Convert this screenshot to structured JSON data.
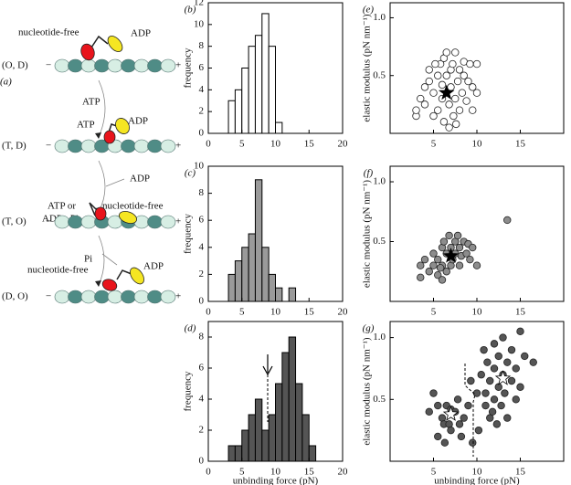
{
  "diagram": {
    "label": "(a)",
    "states": [
      "(O, D)",
      "(T, D)",
      "(T, O)",
      "(D, O)"
    ],
    "minus": "−",
    "plus": "+",
    "head_labels": [
      [
        "nucleotide-free",
        "ADP"
      ],
      [
        "ATP",
        "ADP"
      ],
      [
        "ATP or",
        "ADP · Pi",
        "nucleotide-free"
      ],
      [
        "nucleotide-free",
        "ADP"
      ]
    ],
    "steps": [
      "ATP",
      "ADP",
      "Pi"
    ]
  },
  "chart_data": [
    {
      "type": "histogram",
      "panel": "(b)",
      "ylabel": "frequency",
      "color": "#ffffff",
      "bins": [
        3,
        4,
        5,
        6,
        7,
        8,
        9,
        10,
        11
      ],
      "values": [
        3,
        4,
        6,
        8,
        9,
        11,
        8,
        1
      ],
      "xlim": [
        0,
        20
      ],
      "xticks": [
        0,
        5,
        10,
        15,
        20
      ],
      "ylim": [
        0,
        12
      ],
      "yticks": [
        0,
        2,
        4,
        6,
        8,
        10,
        12
      ]
    },
    {
      "type": "histogram",
      "panel": "(c)",
      "ylabel": "frequency",
      "color": "#9a9a9a",
      "bins": [
        3,
        4,
        5,
        6,
        7,
        8,
        9,
        10,
        11,
        12,
        13
      ],
      "values": [
        2,
        3,
        4,
        5,
        9,
        4,
        2,
        1,
        0,
        1
      ],
      "xlim": [
        0,
        20
      ],
      "xticks": [
        0,
        5,
        10,
        15,
        20
      ],
      "ylim": [
        0,
        10
      ],
      "yticks": [
        0,
        2,
        4,
        6,
        8,
        10
      ]
    },
    {
      "type": "histogram",
      "panel": "(d)",
      "ylabel": "frequency",
      "xlabel": "unbinding force (pN)",
      "color": "#555555",
      "bins": [
        3,
        4,
        5,
        6,
        7,
        8,
        9,
        10,
        11,
        12,
        13,
        14,
        15,
        16
      ],
      "values": [
        1,
        1,
        2,
        3,
        4,
        2,
        3,
        5,
        7,
        8,
        5,
        3,
        1
      ],
      "xlim": [
        0,
        20
      ],
      "xticks": [
        0,
        5,
        10,
        15,
        20
      ],
      "ylim": [
        0,
        9
      ],
      "yticks": [
        0,
        2,
        4,
        6,
        8
      ]
    },
    {
      "type": "scatter",
      "panel": "(e)",
      "ylabel": "elastic modulus (pN nm⁻¹)",
      "color": "#ffffff",
      "x": [
        3,
        3,
        3.5,
        4,
        4,
        4.5,
        4.5,
        5,
        5,
        5.5,
        5.5,
        5.8,
        6,
        6,
        6.2,
        6.2,
        6.5,
        6.5,
        6.8,
        7,
        7,
        7.2,
        7.3,
        7.5,
        7.5,
        7.8,
        8,
        8,
        8.3,
        8.5,
        8.5,
        8.8,
        9,
        9.2,
        9.5,
        9.5,
        10,
        10,
        6.8,
        5.2,
        7.6
      ],
      "values": [
        0.15,
        0.2,
        0.3,
        0.25,
        0.4,
        0.55,
        0.45,
        0.35,
        0.15,
        0.5,
        0.2,
        0.6,
        0.42,
        0.3,
        0.65,
        0.1,
        0.5,
        0.7,
        0.25,
        0.55,
        0.4,
        0.6,
        0.15,
        0.3,
        0.7,
        0.45,
        0.55,
        0.2,
        0.35,
        0.5,
        0.62,
        0.28,
        0.45,
        0.6,
        0.4,
        0.2,
        0.35,
        0.6,
        0.05,
        0.6,
        0.08
      ],
      "stars": [
        {
          "x": 6.5,
          "y": 0.35,
          "color": "#000000"
        }
      ],
      "xlim": [
        0,
        20
      ],
      "xticks": [
        5,
        10,
        15
      ],
      "ylim": [
        0,
        1.13
      ],
      "yticks": [
        0.5,
        {
          "value": 1,
          "label": "1.0"
        }
      ]
    },
    {
      "type": "scatter",
      "panel": "(f)",
      "ylabel": "elastic modulus (pN nm⁻¹)",
      "color": "#8c8c8c",
      "x": [
        3.5,
        3.5,
        4,
        4.5,
        5,
        5,
        5.5,
        5.5,
        6,
        6,
        6.2,
        6.5,
        6.5,
        6.8,
        7,
        7,
        7.2,
        7.5,
        7.5,
        7.8,
        8,
        8,
        8.2,
        8.5,
        8.8,
        9,
        9.2,
        9.5,
        10,
        13.5,
        6,
        5.8
      ],
      "values": [
        0.3,
        0.2,
        0.35,
        0.25,
        0.3,
        0.4,
        0.35,
        0.22,
        0.45,
        0.3,
        0.5,
        0.4,
        0.25,
        0.55,
        0.3,
        0.45,
        0.35,
        0.5,
        0.4,
        0.55,
        0.3,
        0.45,
        0.38,
        0.5,
        0.4,
        0.48,
        0.35,
        0.45,
        0.3,
        0.68,
        0.18,
        0.28
      ],
      "stars": [
        {
          "x": 7,
          "y": 0.38,
          "color": "#000000"
        }
      ],
      "xlim": [
        0,
        20
      ],
      "xticks": [
        5,
        10,
        15
      ],
      "ylim": [
        0,
        1.13
      ],
      "yticks": [
        0.5,
        {
          "value": 1,
          "label": "1.0"
        }
      ]
    },
    {
      "type": "scatter",
      "panel": "(g)",
      "ylabel": "elastic modulus (pN nm⁻¹)",
      "xlabel": "unbinding force (pN)",
      "color": "#555555",
      "x": [
        4.5,
        5,
        5.5,
        5.5,
        6,
        6.2,
        6.5,
        6.8,
        7,
        7,
        7.5,
        7.8,
        8,
        8.2,
        8.5,
        9,
        9.5,
        10,
        10.2,
        6.3,
        9.3,
        10.5,
        10.8,
        11,
        11,
        11.2,
        11.5,
        11.5,
        12,
        12,
        12,
        12.5,
        12.5,
        12.8,
        13,
        13,
        13.2,
        13.5,
        13.5,
        14,
        14,
        14.5,
        14.5,
        15,
        15,
        15.5,
        16.5,
        11.8,
        12.3
      ],
      "values": [
        0.4,
        0.55,
        0.45,
        0.2,
        0.35,
        0.3,
        0.45,
        0.3,
        0.42,
        0.25,
        0.4,
        0.5,
        0.3,
        0.2,
        0.35,
        0.45,
        0.15,
        0.55,
        0.25,
        0.15,
        0.65,
        0.7,
        0.9,
        0.55,
        0.45,
        0.8,
        0.65,
        0.35,
        0.75,
        0.5,
        0.95,
        0.6,
        0.85,
        0.45,
        0.7,
        1,
        0.55,
        0.8,
        0.35,
        0.65,
        0.9,
        0.5,
        0.75,
        1.05,
        0.6,
        0.85,
        0.8,
        0.4,
        0.3
      ],
      "stars": [
        {
          "x": 7,
          "y": 0.38,
          "color": "#ffffff"
        },
        {
          "x": 13,
          "y": 0.67,
          "color": "#ffffff"
        }
      ],
      "xlim": [
        0,
        20
      ],
      "xticks": [
        5,
        10,
        15
      ],
      "ylim": [
        0,
        1.13
      ],
      "yticks": [
        0.5,
        {
          "value": 1,
          "label": "1.0"
        }
      ]
    }
  ]
}
